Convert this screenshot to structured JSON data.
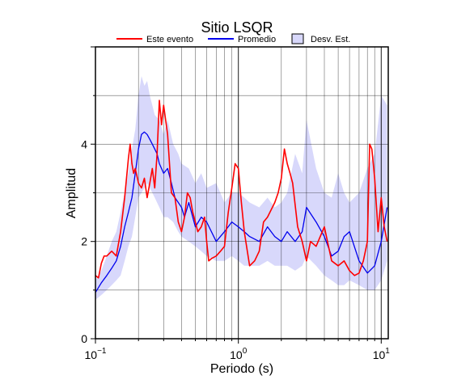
{
  "chart_data": {
    "type": "line",
    "title": "Sitio LSQR",
    "xlabel": "Periodo (s)",
    "ylabel": "Amplitud",
    "xscale": "log",
    "xlim": [
      0.1,
      11.2
    ],
    "ylim": [
      0,
      6
    ],
    "grid": true,
    "legend_position": "top",
    "x_ticks": [
      {
        "value": 0.1,
        "base": "10",
        "exp": "−1"
      },
      {
        "value": 1,
        "base": "10",
        "exp": "0"
      },
      {
        "value": 10,
        "base": "10",
        "exp": "1"
      }
    ],
    "y_ticks": [
      {
        "value": 0,
        "label": "0"
      },
      {
        "value": 2,
        "label": "2"
      },
      {
        "value": 4,
        "label": "4"
      }
    ],
    "colors": {
      "event": "#ff0000",
      "mean": "#0000ee",
      "std_fill": "#d8d8fb"
    },
    "series": [
      {
        "name": "Este evento",
        "style": "line",
        "color": "#ff0000",
        "x": [
          0.1,
          0.105,
          0.11,
          0.115,
          0.12,
          0.13,
          0.14,
          0.15,
          0.16,
          0.17,
          0.175,
          0.18,
          0.185,
          0.19,
          0.2,
          0.21,
          0.22,
          0.23,
          0.24,
          0.25,
          0.26,
          0.27,
          0.28,
          0.29,
          0.3,
          0.32,
          0.34,
          0.36,
          0.38,
          0.4,
          0.42,
          0.44,
          0.46,
          0.48,
          0.5,
          0.52,
          0.55,
          0.58,
          0.6,
          0.62,
          0.65,
          0.7,
          0.75,
          0.8,
          0.85,
          0.9,
          0.95,
          1.0,
          1.05,
          1.1,
          1.2,
          1.3,
          1.4,
          1.5,
          1.6,
          1.8,
          1.9,
          2.0,
          2.1,
          2.2,
          2.3,
          2.4,
          2.6,
          2.8,
          3.0,
          3.2,
          3.5,
          4.0,
          4.5,
          5.0,
          5.5,
          6.0,
          6.5,
          7.0,
          7.5,
          8.0,
          8.3,
          8.6,
          9.0,
          9.5,
          10.0,
          10.5,
          11.0
        ],
        "y": [
          1.3,
          1.25,
          1.55,
          1.7,
          1.7,
          1.8,
          1.7,
          2.2,
          2.9,
          3.7,
          4.0,
          3.6,
          3.4,
          3.5,
          3.2,
          3.1,
          3.3,
          2.9,
          3.2,
          3.5,
          3.1,
          3.8,
          4.9,
          4.4,
          4.8,
          4.2,
          3.0,
          2.9,
          2.4,
          2.2,
          2.5,
          3.0,
          2.9,
          2.6,
          2.4,
          2.2,
          2.3,
          2.5,
          2.0,
          1.6,
          1.65,
          1.7,
          1.8,
          1.9,
          2.6,
          3.1,
          3.6,
          3.5,
          2.8,
          2.2,
          1.5,
          1.6,
          1.8,
          2.4,
          2.5,
          2.8,
          3.0,
          3.3,
          3.9,
          3.6,
          3.4,
          3.2,
          2.3,
          2.0,
          1.6,
          2.0,
          1.9,
          2.3,
          1.6,
          1.5,
          1.6,
          1.4,
          1.3,
          1.35,
          1.6,
          2.0,
          4.0,
          3.9,
          3.3,
          2.2,
          2.9,
          2.3,
          2.0
        ]
      },
      {
        "name": "Promedio",
        "style": "line",
        "color": "#0000ee",
        "x": [
          0.1,
          0.11,
          0.12,
          0.13,
          0.14,
          0.15,
          0.16,
          0.17,
          0.18,
          0.19,
          0.2,
          0.21,
          0.22,
          0.23,
          0.24,
          0.25,
          0.26,
          0.27,
          0.28,
          0.3,
          0.32,
          0.34,
          0.36,
          0.38,
          0.4,
          0.42,
          0.45,
          0.5,
          0.55,
          0.6,
          0.7,
          0.8,
          0.9,
          1.0,
          1.1,
          1.2,
          1.4,
          1.6,
          1.8,
          2.0,
          2.2,
          2.5,
          2.8,
          3.0,
          3.5,
          4.0,
          4.5,
          5.0,
          5.5,
          6.0,
          7.0,
          8.0,
          9.0,
          10.0,
          11.0
        ],
        "y": [
          0.95,
          1.15,
          1.3,
          1.45,
          1.6,
          1.9,
          2.3,
          2.6,
          2.9,
          3.4,
          3.9,
          4.2,
          4.25,
          4.2,
          4.1,
          4.0,
          3.9,
          3.8,
          3.6,
          3.4,
          3.5,
          3.2,
          2.9,
          2.8,
          2.7,
          2.5,
          2.8,
          2.3,
          2.5,
          2.4,
          2.0,
          2.2,
          2.4,
          2.3,
          2.2,
          2.1,
          2.0,
          2.3,
          2.1,
          2.0,
          2.2,
          2.0,
          2.2,
          2.7,
          2.4,
          2.1,
          1.7,
          1.8,
          2.1,
          2.2,
          1.6,
          1.35,
          1.5,
          2.0,
          2.7
        ]
      },
      {
        "name": "Desv. Est.",
        "style": "band",
        "color": "#d8d8fb",
        "x": [
          0.1,
          0.11,
          0.12,
          0.13,
          0.14,
          0.15,
          0.16,
          0.17,
          0.18,
          0.19,
          0.2,
          0.21,
          0.22,
          0.23,
          0.24,
          0.25,
          0.26,
          0.28,
          0.3,
          0.32,
          0.35,
          0.38,
          0.4,
          0.45,
          0.5,
          0.55,
          0.6,
          0.7,
          0.8,
          0.9,
          1.0,
          1.1,
          1.2,
          1.4,
          1.6,
          1.8,
          2.0,
          2.2,
          2.5,
          2.8,
          3.0,
          3.5,
          4.0,
          4.5,
          5.0,
          5.5,
          6.0,
          7.0,
          8.0,
          9.0,
          10.0,
          11.0
        ],
        "y_low": [
          0.8,
          0.9,
          1.0,
          1.1,
          1.2,
          1.3,
          1.6,
          1.9,
          2.1,
          2.5,
          2.9,
          3.0,
          3.1,
          3.2,
          3.1,
          3.0,
          2.9,
          2.7,
          2.5,
          2.5,
          2.4,
          2.2,
          2.1,
          2.0,
          1.9,
          1.8,
          1.7,
          1.6,
          1.6,
          1.7,
          1.6,
          1.5,
          1.5,
          1.5,
          1.6,
          1.5,
          1.5,
          1.5,
          1.4,
          1.5,
          1.7,
          1.5,
          1.3,
          1.2,
          1.1,
          1.1,
          1.2,
          1.1,
          1.0,
          1.0,
          1.2,
          1.6
        ],
        "y_high": [
          1.2,
          1.4,
          1.7,
          2.0,
          2.2,
          2.6,
          3.0,
          3.4,
          3.9,
          4.3,
          5.0,
          5.4,
          5.2,
          5.3,
          5.0,
          4.8,
          4.6,
          4.5,
          4.2,
          4.5,
          4.0,
          3.8,
          3.6,
          3.5,
          3.2,
          3.4,
          3.1,
          3.2,
          2.8,
          3.0,
          3.0,
          2.9,
          2.8,
          2.7,
          2.9,
          2.7,
          2.8,
          3.0,
          3.8,
          3.4,
          4.5,
          3.5,
          3.0,
          2.9,
          3.4,
          3.0,
          2.8,
          3.0,
          3.5,
          3.8,
          5.0,
          4.8
        ]
      }
    ]
  }
}
